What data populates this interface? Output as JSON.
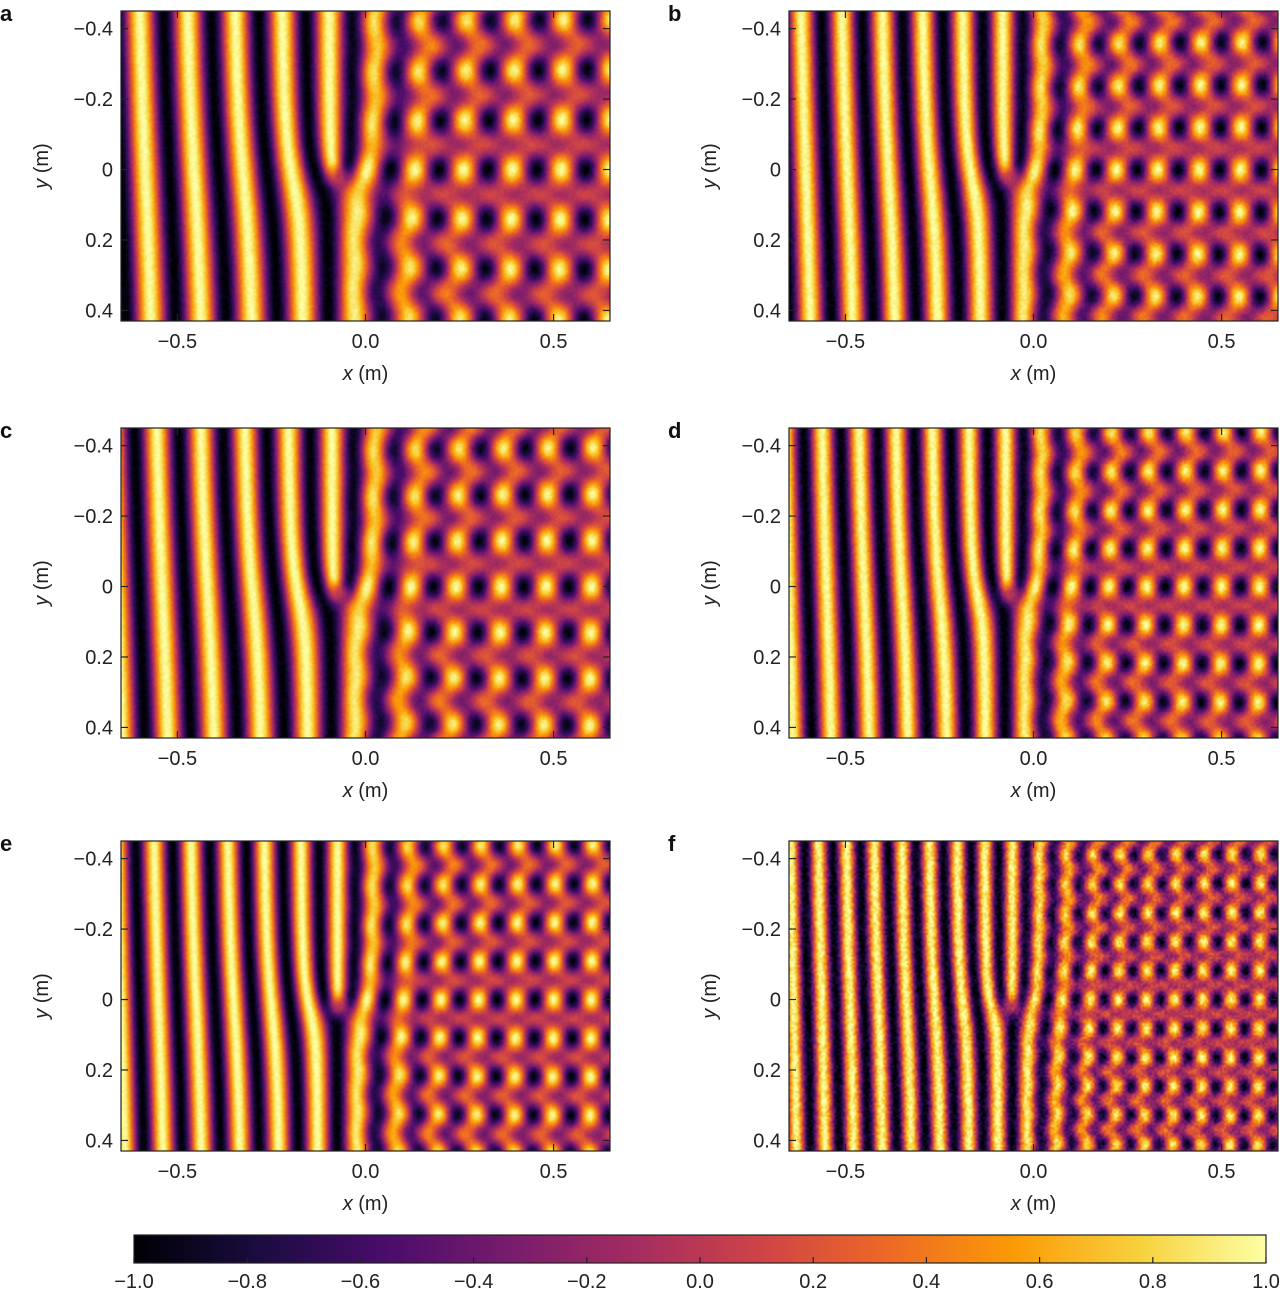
{
  "colormap": "inferno",
  "colormap_stops": [
    "#000004",
    "#1b0c41",
    "#4a0c6b",
    "#781c6d",
    "#a52c60",
    "#cf4446",
    "#ed6925",
    "#fb9b06",
    "#f7d13d",
    "#fcffa4"
  ],
  "chart_data": [
    {
      "type": "heatmap",
      "panel": "a",
      "xlabel": "x",
      "xunit": "(m)",
      "ylabel": "y",
      "yunit": "(m)",
      "xlim": [
        -0.65,
        0.65
      ],
      "ylim": [
        0.43,
        -0.45
      ],
      "xticks": [
        -0.5,
        0.0,
        0.5
      ],
      "xtick_labels": [
        "−0.5",
        "0.0",
        "0.5"
      ],
      "yticks": [
        -0.4,
        -0.2,
        0,
        0.2,
        0.4
      ],
      "ytick_labels": [
        "−0.4",
        "−0.2",
        "0",
        "0.2",
        "0.4"
      ],
      "vortex_center": [
        -0.07,
        0.02
      ],
      "wavelength": 0.13,
      "pattern": "two-lobe",
      "noise": 0.05
    },
    {
      "type": "heatmap",
      "panel": "b",
      "xlabel": "x",
      "xunit": "(m)",
      "ylabel": "y",
      "yunit": "(m)",
      "xlim": [
        -0.65,
        0.65
      ],
      "ylim": [
        0.43,
        -0.45
      ],
      "xticks": [
        -0.5,
        0.0,
        0.5
      ],
      "xtick_labels": [
        "−0.5",
        "0.0",
        "0.5"
      ],
      "yticks": [
        -0.4,
        -0.2,
        0,
        0.2,
        0.4
      ],
      "ytick_labels": [
        "−0.4",
        "−0.2",
        "0",
        "0.2",
        "0.4"
      ],
      "vortex_center": [
        -0.06,
        0.02
      ],
      "wavelength": 0.11,
      "pattern": "two-lobe",
      "noise": 0.07
    },
    {
      "type": "heatmap",
      "panel": "c",
      "xlabel": "x",
      "xunit": "(m)",
      "ylabel": "y",
      "yunit": "(m)",
      "xlim": [
        -0.65,
        0.65
      ],
      "ylim": [
        0.43,
        -0.45
      ],
      "xticks": [
        -0.5,
        0.0,
        0.5
      ],
      "xtick_labels": [
        "−0.5",
        "0.0",
        "0.5"
      ],
      "yticks": [
        -0.4,
        -0.2,
        0,
        0.2,
        0.4
      ],
      "ytick_labels": [
        "−0.4",
        "−0.2",
        "0",
        "0.2",
        "0.4"
      ],
      "vortex_center": [
        -0.07,
        0.02
      ],
      "wavelength": 0.12,
      "pattern": "two-lobe",
      "noise": 0.05
    },
    {
      "type": "heatmap",
      "panel": "d",
      "xlabel": "x",
      "xunit": "(m)",
      "ylabel": "y",
      "yunit": "(m)",
      "xlim": [
        -0.65,
        0.65
      ],
      "ylim": [
        0.43,
        -0.45
      ],
      "xticks": [
        -0.5,
        0.0,
        0.5
      ],
      "xtick_labels": [
        "−0.5",
        "0.0",
        "0.5"
      ],
      "yticks": [
        -0.4,
        -0.2,
        0,
        0.2,
        0.4
      ],
      "ytick_labels": [
        "−0.4",
        "−0.2",
        "0",
        "0.2",
        "0.4"
      ],
      "vortex_center": [
        -0.06,
        0.02
      ],
      "wavelength": 0.1,
      "pattern": "two-lobe",
      "noise": 0.08
    },
    {
      "type": "heatmap",
      "panel": "e",
      "xlabel": "x",
      "xunit": "(m)",
      "ylabel": "y",
      "yunit": "(m)",
      "xlim": [
        -0.65,
        0.65
      ],
      "ylim": [
        0.43,
        -0.45
      ],
      "xticks": [
        -0.5,
        0.0,
        0.5
      ],
      "xtick_labels": [
        "−0.5",
        "0.0",
        "0.5"
      ],
      "yticks": [
        -0.4,
        -0.2,
        0,
        0.2,
        0.4
      ],
      "ytick_labels": [
        "−0.4",
        "−0.2",
        "0",
        "0.2",
        "0.4"
      ],
      "vortex_center": [
        -0.07,
        0.02
      ],
      "wavelength": 0.1,
      "pattern": "two-lobe",
      "noise": 0.05
    },
    {
      "type": "heatmap",
      "panel": "f",
      "xlabel": "x",
      "xunit": "(m)",
      "ylabel": "y",
      "yunit": "(m)",
      "xlim": [
        -0.65,
        0.65
      ],
      "ylim": [
        0.43,
        -0.45
      ],
      "xticks": [
        -0.5,
        0.0,
        0.5
      ],
      "xtick_labels": [
        "−0.5",
        "0.0",
        "0.5"
      ],
      "yticks": [
        -0.4,
        -0.2,
        0,
        0.2,
        0.4
      ],
      "ytick_labels": [
        "−0.4",
        "−0.2",
        "0",
        "0.2",
        "0.4"
      ],
      "vortex_center": [
        -0.06,
        0.02
      ],
      "wavelength": 0.075,
      "pattern": "two-lobe",
      "noise": 0.18
    }
  ],
  "colorbar": {
    "min": -1.0,
    "max": 1.0,
    "ticks": [
      -1.0,
      -0.8,
      -0.6,
      -0.4,
      -0.2,
      0.0,
      0.2,
      0.4,
      0.6,
      0.8,
      1.0
    ],
    "tick_labels": [
      "−1.0",
      "−0.8",
      "−0.6",
      "−0.4",
      "−0.2",
      "0.0",
      "0.2",
      "0.4",
      "0.6",
      "0.8",
      "1.0"
    ]
  }
}
